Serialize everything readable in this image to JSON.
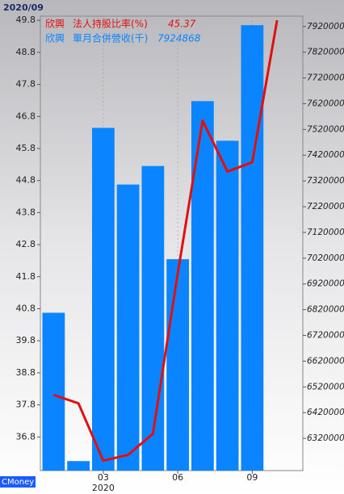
{
  "chart_data": {
    "type": "bar-line",
    "date": "2020/09",
    "company": "欣興",
    "year_label": "2020",
    "watermark": "CMoney",
    "categories": [
      null,
      null,
      "03",
      null,
      null,
      "06",
      null,
      null,
      "09",
      null
    ],
    "series": [
      {
        "name": "單月合併營收(千)",
        "color": "#0a84ff",
        "type": "bar",
        "axis": "y2",
        "values": [
          6808000,
          6232000,
          7526000,
          7306000,
          7378000,
          7016000,
          7630000,
          7476000,
          7924868,
          null
        ]
      },
      {
        "name": "法人持股比率(%)",
        "color": "#e01010",
        "type": "line",
        "axis": "y",
        "values": [
          38.11,
          37.85,
          36.06,
          36.24,
          36.9,
          41.9,
          46.67,
          45.08,
          45.37,
          49.8
        ]
      }
    ],
    "ylim": [
      35.75,
      49.93
    ],
    "yticks": [
      36.8,
      37.8,
      38.8,
      39.8,
      40.8,
      41.8,
      42.8,
      43.8,
      44.8,
      45.8,
      46.8,
      47.8,
      48.8,
      49.8
    ],
    "y2lim": [
      6195000,
      7960000
    ],
    "y2ticks": [
      6320000,
      6420000,
      6520000,
      6620000,
      6720000,
      6820000,
      6920000,
      7020000,
      7120000,
      7220000,
      7320000,
      7420000,
      7520000,
      7620000,
      7720000,
      7820000,
      7920000
    ]
  }
}
